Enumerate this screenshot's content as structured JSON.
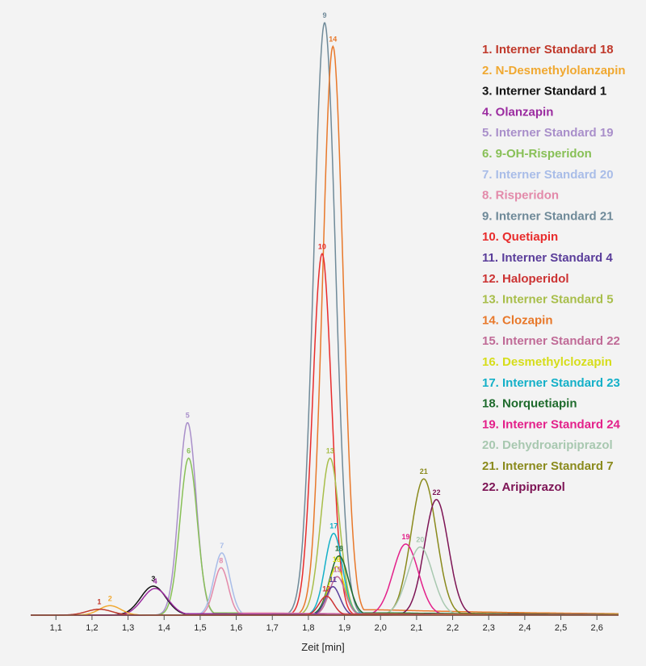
{
  "chart_data": {
    "type": "line",
    "xlabel": "Zeit [min]",
    "ylabel": "",
    "xlim": [
      1.03,
      2.66
    ],
    "ylim": [
      0,
      100
    ],
    "x_ticks": [
      "1,1",
      "1,2",
      "1,3",
      "1,4",
      "1,5",
      "1,6",
      "1,7",
      "1,8",
      "1,9",
      "2,0",
      "2,1",
      "2,2",
      "2,3",
      "2,4",
      "2,5",
      "2,6"
    ],
    "x_tick_values": [
      1.1,
      1.2,
      1.3,
      1.4,
      1.5,
      1.6,
      1.7,
      1.8,
      1.9,
      2.0,
      2.1,
      2.2,
      2.3,
      2.4,
      2.5,
      2.6
    ],
    "grid": false,
    "legend_position": "right",
    "series": [
      {
        "label": "1",
        "name": "1. Interner Standard 18",
        "color": "#c0392b",
        "center": 1.22,
        "height": 1.0,
        "width": 0.035,
        "tail": 0
      },
      {
        "label": "2",
        "name": "2. N-Desmethylolanzapin",
        "color": "#f0a830",
        "center": 1.25,
        "height": 1.6,
        "width": 0.03,
        "tail": 0
      },
      {
        "label": "3",
        "name": "3. Interner Standard 1",
        "color": "#111111",
        "center": 1.37,
        "height": 4.9,
        "width": 0.035,
        "tail": 0.3
      },
      {
        "label": "4",
        "name": "4. Olanzapin",
        "color": "#9b2ca0",
        "center": 1.375,
        "height": 4.5,
        "width": 0.035,
        "tail": 0.3
      },
      {
        "label": "5",
        "name": "5. Interner Standard 19",
        "color": "#a98fca",
        "center": 1.465,
        "height": 32.5,
        "width": 0.024,
        "tail": 0.5
      },
      {
        "label": "6",
        "name": "6. 9-OH-Risperidon",
        "color": "#88c057",
        "center": 1.468,
        "height": 26.5,
        "width": 0.024,
        "tail": 0.5
      },
      {
        "label": "7",
        "name": "7. Interner Standard 20",
        "color": "#a9bde8",
        "center": 1.56,
        "height": 10.5,
        "width": 0.022,
        "tail": 0.5
      },
      {
        "label": "8",
        "name": "8. Risperidon",
        "color": "#e38aaa",
        "center": 1.558,
        "height": 8.0,
        "width": 0.02,
        "tail": 0.5
      },
      {
        "label": "9",
        "name": "9. Interner Standard 21",
        "color": "#6f8a99",
        "center": 1.845,
        "height": 100,
        "width": 0.03,
        "tail": 0.04
      },
      {
        "label": "10",
        "name": "10. Quetiapin",
        "color": "#e82c2c",
        "center": 1.838,
        "height": 61,
        "width": 0.026,
        "tail": 0.3
      },
      {
        "label": "11",
        "name": "11. Interner Standard 4",
        "color": "#5a3d9a",
        "center": 1.868,
        "height": 4.8,
        "width": 0.02,
        "tail": 0.2
      },
      {
        "label": "12",
        "name": "12. Haloperidol",
        "color": "#cc3333",
        "center": 1.85,
        "height": 3.2,
        "width": 0.02,
        "tail": 0.2
      },
      {
        "label": "13",
        "name": "13. Interner Standard 5",
        "color": "#a8be4a",
        "center": 1.86,
        "height": 26.5,
        "width": 0.026,
        "tail": 0.5
      },
      {
        "label": "14",
        "name": "14. Clozapin",
        "color": "#e8782a",
        "center": 1.868,
        "height": 96,
        "width": 0.028,
        "tail": 1.2
      },
      {
        "label": "15",
        "name": "15. Interner Standard 22",
        "color": "#c06b97",
        "center": 1.88,
        "height": 6.5,
        "width": 0.022,
        "tail": 0.2
      },
      {
        "label": "16",
        "name": "16. Desmethylclozapin",
        "color": "#d6dd1a",
        "center": 1.878,
        "height": 8.2,
        "width": 0.022,
        "tail": 0.3
      },
      {
        "label": "17",
        "name": "17. Interner Standard 23",
        "color": "#14b0c8",
        "center": 1.87,
        "height": 13.8,
        "width": 0.024,
        "tail": 0.5
      },
      {
        "label": "18",
        "name": "18. Norquetiapin",
        "color": "#1e6b2c",
        "center": 1.885,
        "height": 10.0,
        "width": 0.026,
        "tail": 0.5
      },
      {
        "label": "19",
        "name": "19. Interner Standard 24",
        "color": "#e3208a",
        "center": 2.07,
        "height": 12.0,
        "width": 0.035,
        "tail": 0.3
      },
      {
        "label": "20",
        "name": "20. Dehydroaripiprazol",
        "color": "#a8c8b0",
        "center": 2.11,
        "height": 11.5,
        "width": 0.035,
        "tail": 0.3
      },
      {
        "label": "21",
        "name": "21. Interner Standard 7",
        "color": "#8a8a1c",
        "center": 2.12,
        "height": 23.0,
        "width": 0.035,
        "tail": 0.4
      },
      {
        "label": "22",
        "name": "22. Aripiprazol",
        "color": "#7d1455",
        "center": 2.155,
        "height": 19.5,
        "width": 0.033,
        "tail": 0.3
      }
    ]
  }
}
